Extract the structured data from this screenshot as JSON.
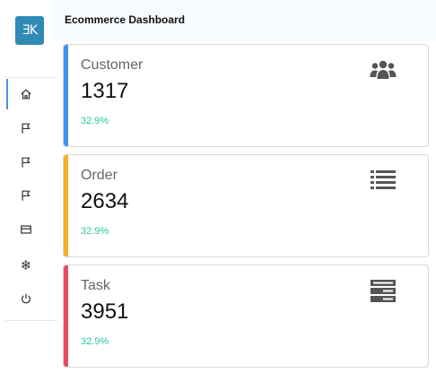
{
  "logo": {
    "text": "ƎK"
  },
  "header": {
    "title": "Ecommerce Dashboard"
  },
  "sidebar": {
    "items": [
      {
        "name": "home",
        "icon": "home-icon"
      },
      {
        "name": "flag-1",
        "icon": "flag-icon"
      },
      {
        "name": "flag-2",
        "icon": "flag-icon"
      },
      {
        "name": "flag-3",
        "icon": "flag-icon"
      },
      {
        "name": "mail",
        "icon": "mail-icon"
      },
      {
        "name": "snowflake",
        "icon": "snowflake-icon"
      },
      {
        "name": "power",
        "icon": "power-icon"
      }
    ]
  },
  "cards": [
    {
      "label": "Customer",
      "value": "1317",
      "percent": "32.9%",
      "accent": "#3a96f3",
      "icon": "users-icon"
    },
    {
      "label": "Order",
      "value": "2634",
      "percent": "32.9%",
      "accent": "#f6b025",
      "icon": "list-icon"
    },
    {
      "label": "Task",
      "value": "3951",
      "percent": "32.9%",
      "accent": "#ee4a62",
      "icon": "server-icon"
    }
  ],
  "colors": {
    "logo_bg": "#2f8bb5",
    "percent_text": "#2ec4a0",
    "active_indicator": "#4a90e2"
  }
}
